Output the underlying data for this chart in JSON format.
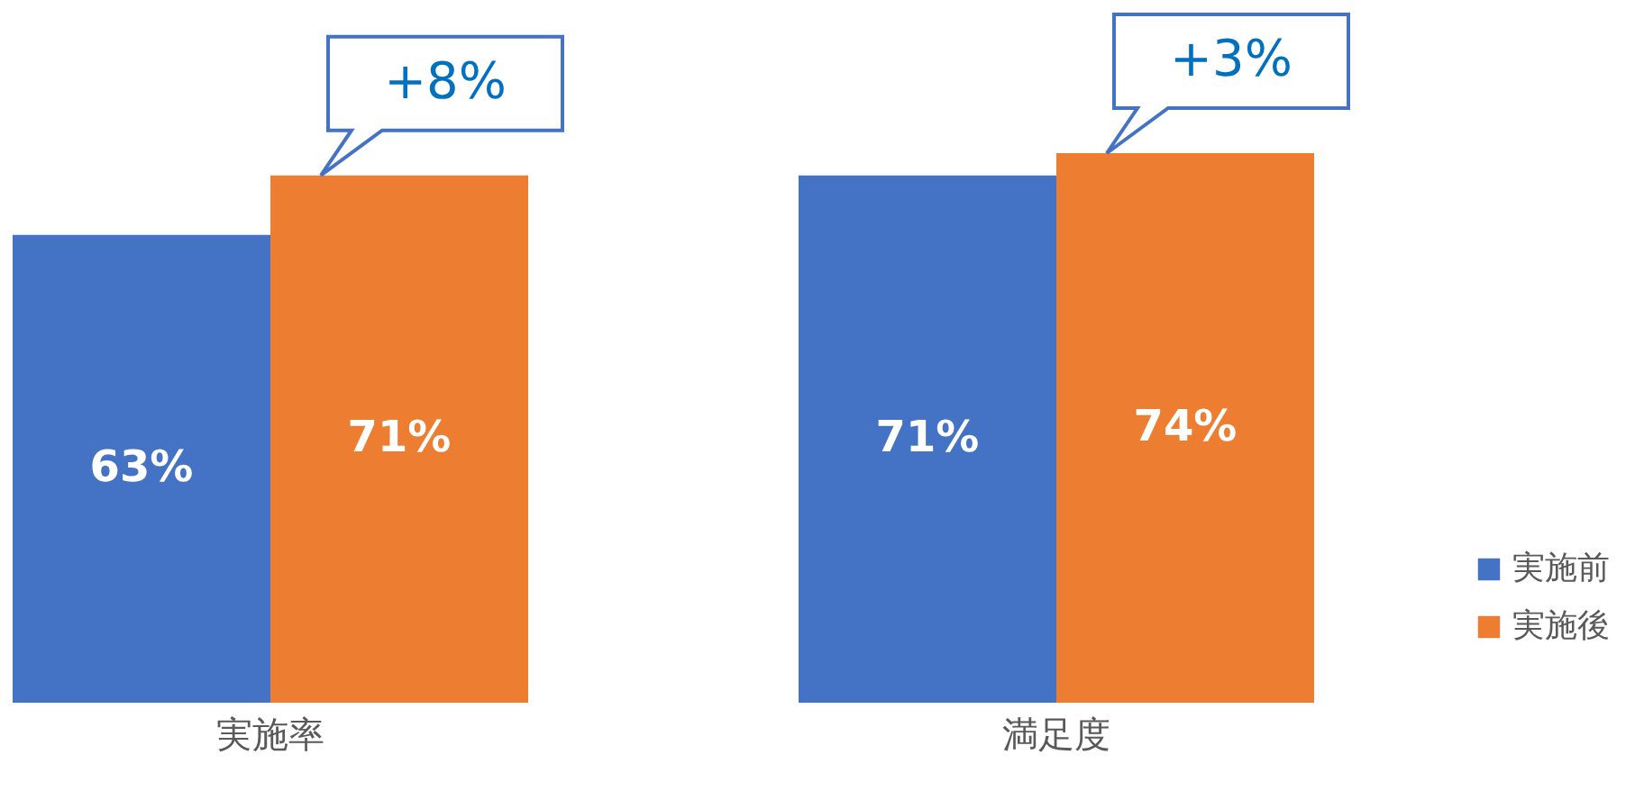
{
  "chart_data": {
    "type": "bar",
    "categories": [
      "実施率",
      "満足度"
    ],
    "series": [
      {
        "name": "実施前",
        "color": "#4472c4",
        "values": [
          63,
          71
        ],
        "value_labels": [
          "63%",
          "71%"
        ]
      },
      {
        "name": "実施後",
        "color": "#ed7d31",
        "values": [
          71,
          74
        ],
        "value_labels": [
          "71%",
          "74%"
        ]
      }
    ],
    "legend": "right",
    "grid": false,
    "annotations": [
      {
        "text": "+8%",
        "x": "実施率",
        "y": 71
      },
      {
        "text": "+3%",
        "x": "満足度",
        "y": 74
      }
    ]
  }
}
